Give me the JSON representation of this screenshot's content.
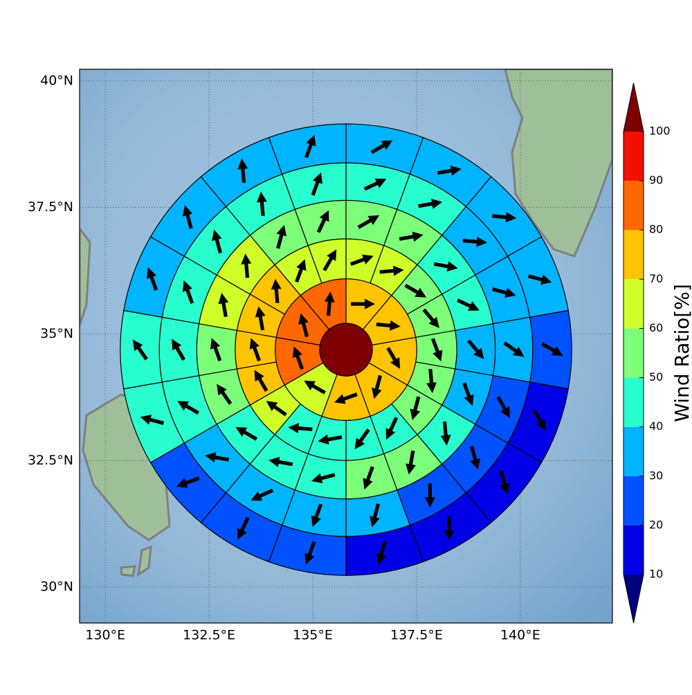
{
  "chart_data": {
    "type": "polar-sector-map",
    "xlim": [
      129.38,
      142.22
    ],
    "ylim": [
      29.29,
      40.23
    ],
    "xticks": [
      {
        "value": 130,
        "label": "130°E"
      },
      {
        "value": 132.5,
        "label": "132.5°E"
      },
      {
        "value": 135,
        "label": "135°E"
      },
      {
        "value": 137.5,
        "label": "137.5°E"
      },
      {
        "value": 140,
        "label": "140°E"
      }
    ],
    "yticks": [
      {
        "value": 30,
        "label": "30°N"
      },
      {
        "value": 32.5,
        "label": "32.5°N"
      },
      {
        "value": 35,
        "label": "35°N"
      },
      {
        "value": 37.5,
        "label": "37.5°N"
      },
      {
        "value": 40,
        "label": "40°N"
      }
    ],
    "grid": true,
    "center": [
      135.8,
      34.69
    ],
    "radii": [
      0.52,
      1.4,
      2.19,
      2.95,
      3.69,
      4.46
    ],
    "center_value": 105,
    "rings": [
      {
        "values": [
          75,
          74,
          76,
          73,
          72,
          64,
          86,
          85,
          84
        ],
        "directions": [
          90,
          95,
          150,
          195,
          250,
          300,
          340,
          345,
          5
        ]
      },
      {
        "values": [
          65,
          64,
          55,
          54,
          56,
          55,
          53,
          45,
          44,
          45,
          46,
          62,
          73,
          74,
          72,
          73,
          66,
          64
        ],
        "directions": [
          70,
          85,
          120,
          140,
          160,
          175,
          195,
          205,
          215,
          260,
          275,
          305,
          330,
          340,
          350,
          355,
          20,
          30
        ]
      },
      {
        "values": [
          55,
          55,
          45,
          45,
          35,
          35,
          45,
          55,
          55,
          45,
          45,
          42,
          55,
          55,
          65,
          65,
          55,
          55
        ],
        "directions": [
          60,
          80,
          100,
          115,
          140,
          160,
          175,
          190,
          200,
          255,
          280,
          300,
          325,
          340,
          350,
          355,
          15,
          25
        ]
      },
      {
        "values": [
          45,
          45,
          35,
          35,
          35,
          25,
          25,
          25,
          35,
          35,
          35,
          35,
          45,
          45,
          45,
          45,
          45,
          45
        ],
        "directions": [
          65,
          80,
          95,
          105,
          125,
          150,
          165,
          180,
          195,
          200,
          245,
          280,
          300,
          330,
          340,
          345,
          355,
          20
        ]
      },
      {
        "values": [
          35,
          35,
          35,
          35,
          25,
          15,
          15,
          15,
          15,
          25,
          25,
          25,
          45,
          45,
          35,
          35,
          35,
          35
        ],
        "directions": [
          60,
          80,
          95,
          105,
          120,
          150,
          165,
          180,
          195,
          200,
          205,
          250,
          285,
          325,
          340,
          345,
          355,
          20
        ]
      }
    ],
    "colorbar": {
      "label": "Wind Ratio[%]",
      "ticks": [
        10,
        20,
        30,
        40,
        50,
        60,
        70,
        80,
        90,
        100
      ],
      "colors": [
        "#0000e6",
        "#0052ff",
        "#00b4ff",
        "#29ffce",
        "#7dff7a",
        "#ceff29",
        "#ffc400",
        "#ff6800",
        "#f21000"
      ],
      "under": "#00007f",
      "over": "#7f0000"
    }
  }
}
